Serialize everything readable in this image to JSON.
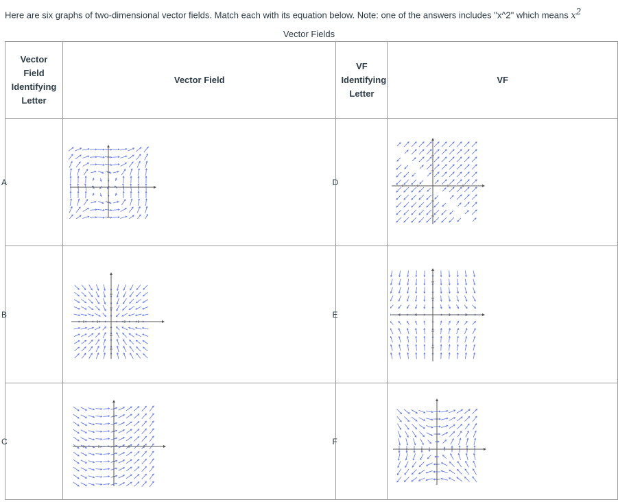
{
  "intro": {
    "text": "Here are six graphs of two-dimensional vector fields. Match each with its equation below. Note: one of the answers includes \"x^2\" which means",
    "math": "x",
    "sup": "2"
  },
  "caption": "Vector Fields",
  "headers": {
    "col1": "Vector Field Identifying Letter",
    "col2": "Vector Field",
    "col3": "VF Identifying Letter",
    "col4": "VF"
  },
  "rows": [
    {
      "left_letter": "A",
      "right_letter": "D"
    },
    {
      "left_letter": "B",
      "right_letter": "E"
    },
    {
      "left_letter": "C",
      "right_letter": "F"
    }
  ],
  "colors": {
    "arrow": "#6a7ff0",
    "axis": "#555555",
    "border": "#9b9b9b"
  }
}
